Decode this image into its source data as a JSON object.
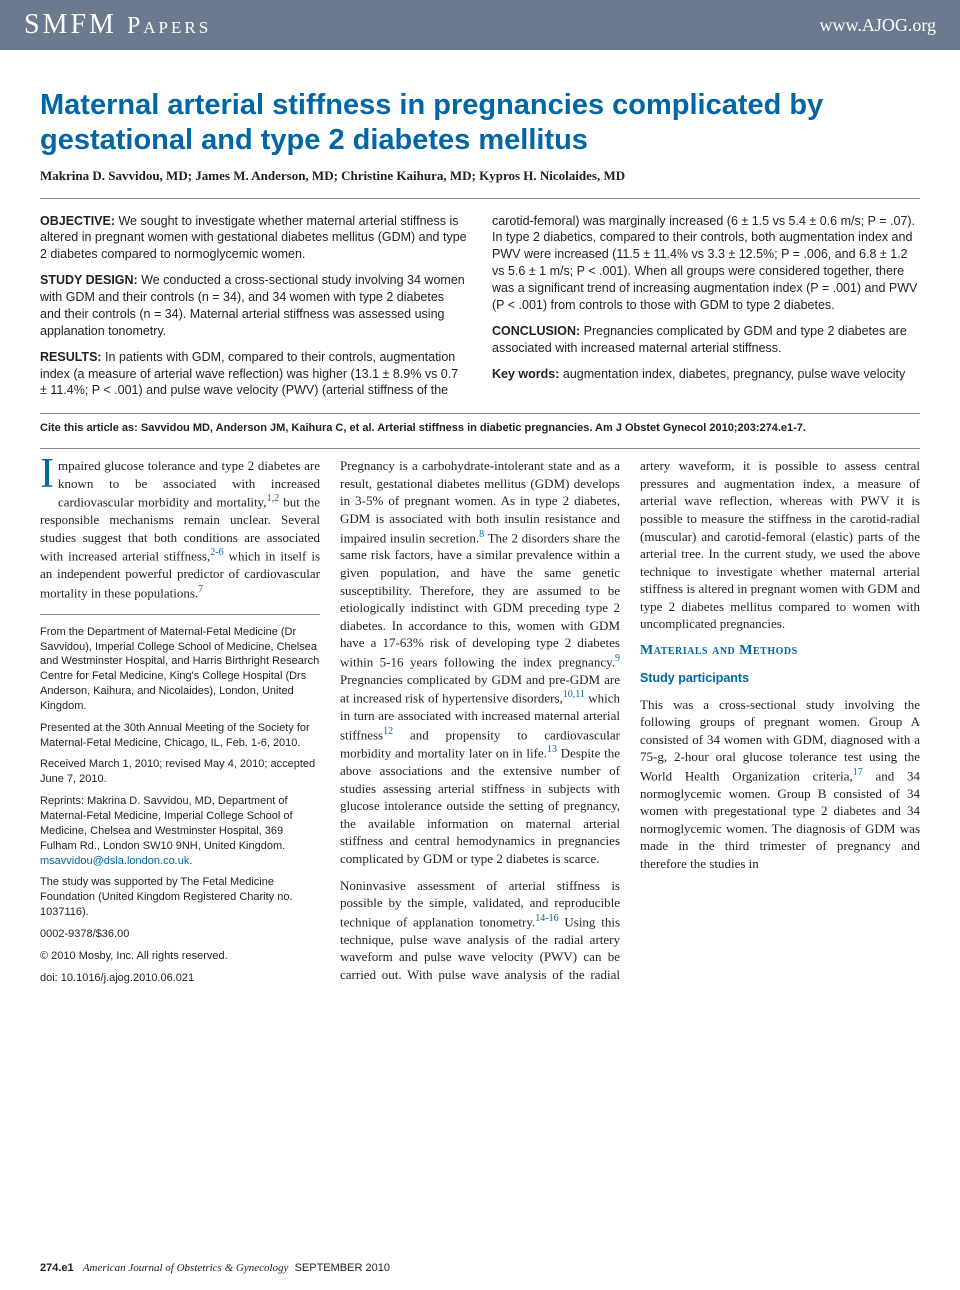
{
  "header": {
    "journal_section": "SMFM Papers",
    "url": "www.AJOG.org"
  },
  "article": {
    "title": "Maternal arterial stiffness in pregnancies complicated by gestational and type 2 diabetes mellitus",
    "authors": "Makrina D. Savvidou, MD; James M. Anderson, MD; Christine Kaihura, MD; Kypros H. Nicolaides, MD",
    "abstract": {
      "objective": {
        "label": "OBJECTIVE:",
        "text": " We sought to investigate whether maternal arterial stiffness is altered in pregnant women with gestational diabetes mellitus (GDM) and type 2 diabetes compared to normoglycemic women."
      },
      "design": {
        "label": "STUDY DESIGN:",
        "text": " We conducted a cross-sectional study involving 34 women with GDM and their controls (n = 34), and 34 women with type 2 diabetes and their controls (n = 34). Maternal arterial stiffness was assessed using applanation tonometry."
      },
      "results": {
        "label": "RESULTS:",
        "text": " In patients with GDM, compared to their controls, augmentation index (a measure of arterial wave reflection) was higher (13.1 ± 8.9% vs 0.7 ± 11.4%; P < .001) and pulse wave velocity (PWV) (arterial stiffness of the carotid-femoral) was marginally increased (6 ± 1.5 vs 5.4 ± 0.6 m/s; P = .07). In type 2 diabetics, compared to their controls, both augmentation index and PWV were increased (11.5 ± 11.4% vs 3.3 ± 12.5%; P = .006, and 6.8 ± 1.2 vs 5.6 ± 1 m/s; P < .001). When all groups were considered together, there was a significant trend of increasing augmentation index (P = .001) and PWV (P < .001) from controls to those with GDM to type 2 diabetes."
      },
      "conclusion": {
        "label": "CONCLUSION:",
        "text": " Pregnancies complicated by GDM and type 2 diabetes are associated with increased maternal arterial stiffness."
      },
      "keywords": {
        "label": "Key words:",
        "text": " augmentation index, diabetes, pregnancy, pulse wave velocity"
      }
    },
    "citation": "Cite this article as: Savvidou MD, Anderson JM, Kaihura C, et al. Arterial stiffness in diabetic pregnancies. Am J Obstet Gynecol 2010;203:274.e1-7.",
    "body": {
      "p1a": "Impaired glucose tolerance and type 2 diabetes are known to be associated with increased cardiovascular morbidity and mortality,",
      "p1b": " but the responsible mechanisms remain unclear. Several studies suggest that both conditions are associated with increased arterial stiffness,",
      "p1c": " which in itself is an independent powerful predictor of cardiovascular mortality in these populations.",
      "p2a": "Pregnancy is a carbohydrate-intolerant state and as a result, gestational diabetes mellitus (GDM) develops in 3-5% of pregnant women. As in type 2 diabetes, GDM is associated with both insulin resistance and impaired insulin secretion.",
      "p2b": " The 2 disorders share the same risk factors, have a similar prevalence within a given population, and have the same genetic susceptibility. Therefore, they are assumed to be etiologically indistinct with GDM preceding type 2 diabetes. In accordance to this, women with GDM have a 17-63% risk of developing type 2 diabetes within 5-16 years following the index pregnancy.",
      "p2c": " Pregnancies complicated by GDM and pre-GDM are at increased risk of hypertensive disorders,",
      "p2d": " which in turn are associated with increased maternal arterial stiffness",
      "p2e": " and propensity to cardiovascular morbidity and mortality later on in life.",
      "p2f": " Despite the above associations and the extensive number of studies assessing arterial stiffness in subjects with glucose intolerance outside the setting of pregnancy, the available information on maternal arterial stiffness and central hemodynamics in pregnancies complicated by GDM or type 2 diabetes is scarce.",
      "p3a": "Noninvasive assessment of arterial stiffness is possible by the simple, validated, and reproducible technique of applanation tonometry.",
      "p3b": " Using this technique, pulse wave analysis of the radial artery waveform and pulse wave velocity (PWV) can be carried out. With pulse wave analysis of the radial artery waveform, it is possible to assess central pressures and augmentation index, a measure of arterial wave reflection, whereas with PWV it is possible to measure the stiffness in the carotid-radial (muscular) and carotid-femoral (elastic) parts of the arterial tree. In the current study, we used the above technique to investigate whether maternal arterial stiffness is altered in pregnant women with GDM and type 2 diabetes mellitus compared to women with uncomplicated pregnancies.",
      "methods_head": "Materials and Methods",
      "subhead1": "Study participants",
      "p4a": "This was a cross-sectional study involving the following groups of pregnant women. Group A consisted of 34 women with GDM, diagnosed with a 75-g, 2-hour oral glucose tolerance test using the World Health Organization criteria,",
      "p4b": " and 34 normoglycemic women. Group B consisted of 34 women with pregestational type 2 diabetes and 34 normoglycemic women. The diagnosis of GDM was made in the third trimester of pregnancy and therefore the studies in"
    },
    "refs": {
      "r12": "1,2",
      "r26": "2-6",
      "r7": "7",
      "r8": "8",
      "r9": "9",
      "r1011": "10,11",
      "r12s": "12",
      "r13": "13",
      "r1416": "14-16",
      "r17": "17"
    },
    "affil": {
      "a1": "From the Department of Maternal-Fetal Medicine (Dr Savvidou), Imperial College School of Medicine, Chelsea and Westminster Hospital, and Harris Birthright Research Centre for Fetal Medicine, King's College Hospital (Drs Anderson, Kaihura, and Nicolaides), London, United Kingdom.",
      "a2": "Presented at the 30th Annual Meeting of the Society for Maternal-Fetal Medicine, Chicago, IL, Feb. 1-6, 2010.",
      "a3": "Received March 1, 2010; revised May 4, 2010; accepted June 7, 2010.",
      "a4": "Reprints: Makrina D. Savvidou, MD, Department of Maternal-Fetal Medicine, Imperial College School of Medicine, Chelsea and Westminster Hospital, 369 Fulham Rd., London SW10 9NH, United Kingdom. ",
      "email": "msavvidou@dsla.london.co.uk",
      "a5": "The study was supported by The Fetal Medicine Foundation (United Kingdom Registered Charity no. 1037116).",
      "a6": "0002-9378/$36.00",
      "a7": "© 2010 Mosby, Inc. All rights reserved.",
      "a8": "doi: 10.1016/j.ajog.2010.06.021"
    }
  },
  "footer": {
    "page": "274.e1",
    "journal": "American Journal of Obstetrics & Gynecology",
    "issue": "SEPTEMBER 2010"
  },
  "colors": {
    "header_bg": "#6b7a8f",
    "accent": "#0066a4",
    "text": "#231f20",
    "rule": "#888888"
  }
}
